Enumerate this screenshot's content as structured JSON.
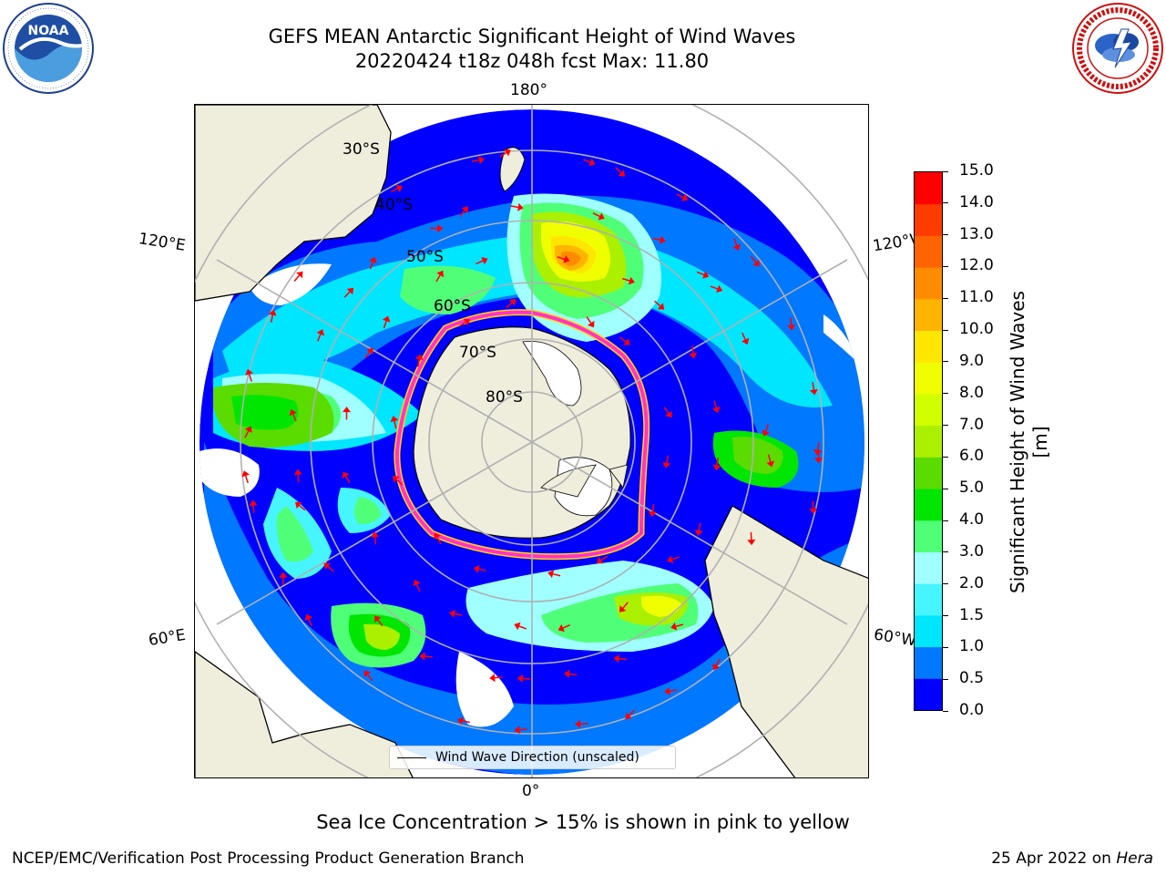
{
  "header": {
    "title_line1": "GEFS MEAN Antarctic Significant Height of Wind Waves",
    "title_line2": "20220424 t18z 048h fcst   Max: 11.80"
  },
  "logos": {
    "left": {
      "icon": "noaa-logo",
      "text": "NOAA",
      "ring_text": "NATIONAL OCEANIC AND ATMOSPHERIC ADMINISTRATION · U.S. DEPARTMENT OF COMMERCE"
    },
    "right": {
      "icon": "nws-logo",
      "ring_text": "NATIONAL WEATHER SERVICE"
    }
  },
  "map": {
    "projection": "south-polar-stereographic",
    "longitude_labels": {
      "top": "180°",
      "bottom": "0°",
      "upper_left": "120°E",
      "upper_right": "120°W",
      "lower_left": "60°E",
      "lower_right": "60°W"
    },
    "latitude_labels": [
      "30°S",
      "40°S",
      "50°S",
      "60°S",
      "70°S",
      "80°S"
    ],
    "land_color": "#efeddc",
    "ice_edge_colors": [
      "#ff33cc",
      "#ffd700"
    ],
    "arrow_color": "#ff0000",
    "regions": [
      {
        "name": "pacific-max",
        "height_m": 11.8
      },
      {
        "name": "indian-ocean",
        "height_m": 5.0
      },
      {
        "name": "south-atlantic",
        "height_m": 7.5
      },
      {
        "name": "east-pacific",
        "height_m": 5.0
      },
      {
        "name": "south-of-australia",
        "height_m": 4.5
      }
    ]
  },
  "colorbar": {
    "label": "Significant Height of Wind Waves [m]",
    "ticks": [
      "0.0",
      "0.5",
      "1.0",
      "1.5",
      "2.0",
      "3.0",
      "4.0",
      "5.0",
      "6.0",
      "7.0",
      "8.0",
      "9.0",
      "10.0",
      "11.0",
      "12.0",
      "13.0",
      "14.0",
      "15.0"
    ],
    "colors": [
      "#0000ff",
      "#0078ff",
      "#00e6ff",
      "#46f5ff",
      "#a0ffff",
      "#50ff78",
      "#00e600",
      "#5adc00",
      "#aaf000",
      "#d2ff00",
      "#f0ff00",
      "#ffe600",
      "#ffb400",
      "#ff8c00",
      "#ff6400",
      "#ff3c00",
      "#ff0000"
    ]
  },
  "legend": {
    "label": "Wind Wave Direction (unscaled)"
  },
  "caption": "Sea Ice Concentration > 15% is shown in pink to yellow",
  "footer": {
    "left": "NCEP/EMC/Verification Post Processing Product Generation Branch",
    "right_date": "25 Apr 2022 on",
    "right_host": "Hera"
  }
}
